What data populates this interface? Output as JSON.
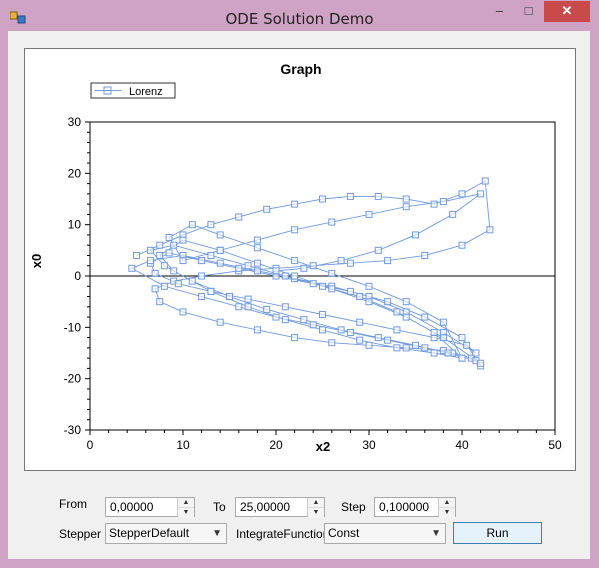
{
  "window": {
    "title": "ODE Solution Demo",
    "minimize": "–",
    "maximize": "□",
    "close": "✕"
  },
  "controls": {
    "from_label": "From",
    "from_value": "0,00000",
    "to_label": "To",
    "to_value": "25,00000",
    "step_label": "Step",
    "step_value": "0,100000",
    "stepper_label": "Stepper",
    "stepper_value": "StepperDefault",
    "integrate_label": "IntegrateFunction",
    "integrate_value": "Const",
    "run_label": "Run"
  },
  "colors": {
    "series": "#6f9ae0",
    "window_frame": "#cfa3c4",
    "close_button": "#c84a4a"
  },
  "chart_data": {
    "type": "scatter",
    "title": "Graph",
    "xlabel": "x2",
    "ylabel": "x0",
    "xlim": [
      0,
      50
    ],
    "ylim": [
      -30,
      30
    ],
    "xticks": [
      0,
      10,
      20,
      30,
      40,
      50
    ],
    "yticks": [
      -30,
      -20,
      -10,
      0,
      10,
      20,
      30
    ],
    "legend": "top-left",
    "grid": false,
    "series": [
      {
        "name": "Lorenz",
        "marker": "square",
        "connected": true,
        "x": [
          5,
          7.5,
          10,
          13,
          16,
          19,
          22,
          25,
          28,
          31,
          34,
          37,
          40,
          42.5,
          43,
          40,
          36,
          32,
          28,
          24,
          20,
          16,
          12,
          9,
          7,
          7.5,
          10,
          14,
          18,
          22,
          26,
          30,
          34,
          38,
          41,
          42,
          40,
          36,
          32,
          28,
          24,
          20,
          16,
          12,
          8.5,
          6.5,
          7,
          9.5,
          13,
          17,
          21,
          25,
          29,
          33,
          37,
          40.5,
          41.5,
          38,
          34,
          30,
          26,
          22,
          18,
          14,
          10,
          6.5,
          4.5,
          8,
          12,
          16,
          20,
          24,
          28,
          32,
          36,
          39,
          40,
          37,
          33,
          29,
          25,
          21,
          17,
          13,
          9,
          6.5,
          8,
          11,
          15,
          19,
          23,
          27,
          31,
          35,
          38.5,
          41.5,
          42,
          38,
          34,
          30,
          26,
          22,
          18,
          14,
          10,
          7.5,
          9,
          13,
          17,
          21,
          25,
          29,
          33,
          37,
          40,
          38,
          34,
          30,
          26,
          22,
          18,
          14,
          11,
          8.5,
          10,
          14,
          18,
          22,
          26,
          30,
          34,
          38,
          42,
          39,
          35,
          31,
          27,
          23,
          20
        ],
        "y": [
          4,
          6,
          8,
          10,
          11.5,
          13,
          14,
          15,
          15.5,
          15.5,
          15,
          14,
          16,
          18.5,
          9,
          6,
          4,
          3,
          2.5,
          2,
          1.5,
          1,
          0,
          -1,
          -2.5,
          -5,
          -7,
          -9,
          -10.5,
          -12,
          -13,
          -13.5,
          -14,
          -14.5,
          -16,
          -17.5,
          -12,
          -8,
          -5,
          -3,
          -1.5,
          0,
          1.5,
          3,
          4.5,
          2.5,
          0.5,
          -1.5,
          -3,
          -4.5,
          -6,
          -7.5,
          -9,
          -10.5,
          -12,
          -13.5,
          -15,
          -11,
          -7,
          -4,
          -2,
          -0.5,
          1,
          2.5,
          4,
          3,
          1.5,
          -2,
          -4,
          -6,
          -8,
          -9.5,
          -11,
          -12.5,
          -14,
          -15,
          -16,
          -11,
          -7,
          -4,
          -2,
          0,
          2,
          4,
          6,
          5,
          2,
          -1,
          -4,
          -6.5,
          -8.5,
          -10.5,
          -12,
          -13.5,
          -15,
          -16.5,
          -17,
          -12,
          -8,
          -5,
          -2.5,
          0,
          2.5,
          5,
          7,
          4,
          1,
          -3,
          -6,
          -8.5,
          -10.5,
          -12.5,
          -14,
          -15,
          -16,
          -9,
          -5,
          -2,
          0.5,
          3,
          5.5,
          8,
          10,
          7.5,
          3,
          5,
          7,
          9,
          10.5,
          12,
          13.5,
          14.5,
          16,
          12,
          8,
          5,
          3,
          1.5,
          1
        ]
      }
    ]
  }
}
